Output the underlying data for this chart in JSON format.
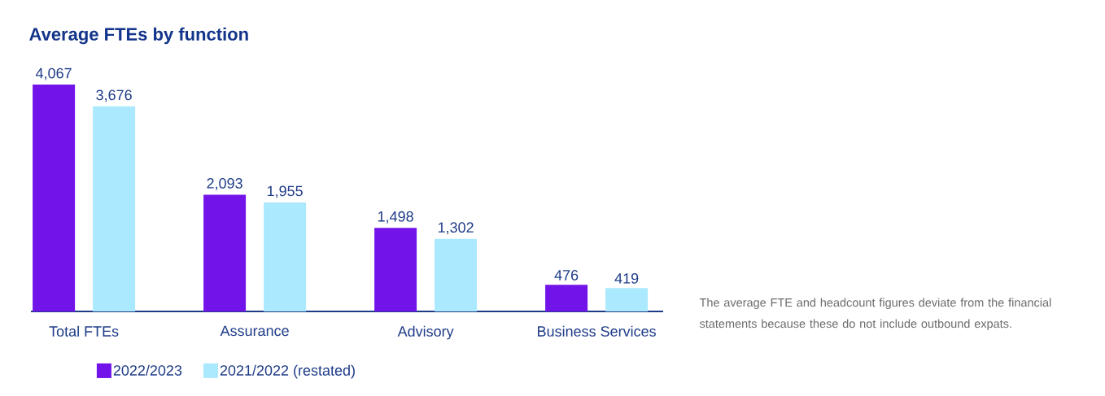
{
  "chart_data": {
    "type": "bar",
    "title": "Average FTEs by function",
    "categories": [
      "Total FTEs",
      "Assurance",
      "Advisory",
      "Business Services"
    ],
    "series": [
      {
        "name": "2022/2023",
        "color": "#7213ea",
        "values": [
          4067,
          2093,
          1498,
          476
        ],
        "value_labels": [
          "4,067",
          "2,093",
          "1,498",
          "476"
        ]
      },
      {
        "name": "2021/2022 (restated)",
        "color": "#abe9fe",
        "values": [
          3676,
          1955,
          1302,
          419
        ],
        "value_labels": [
          "3,676",
          "1,955",
          "1,302",
          "419"
        ]
      }
    ],
    "legend": "bottom",
    "annotations": [
      "The average FTE and headcount figures deviate from the financial statements because these do not include outbound expats."
    ]
  }
}
